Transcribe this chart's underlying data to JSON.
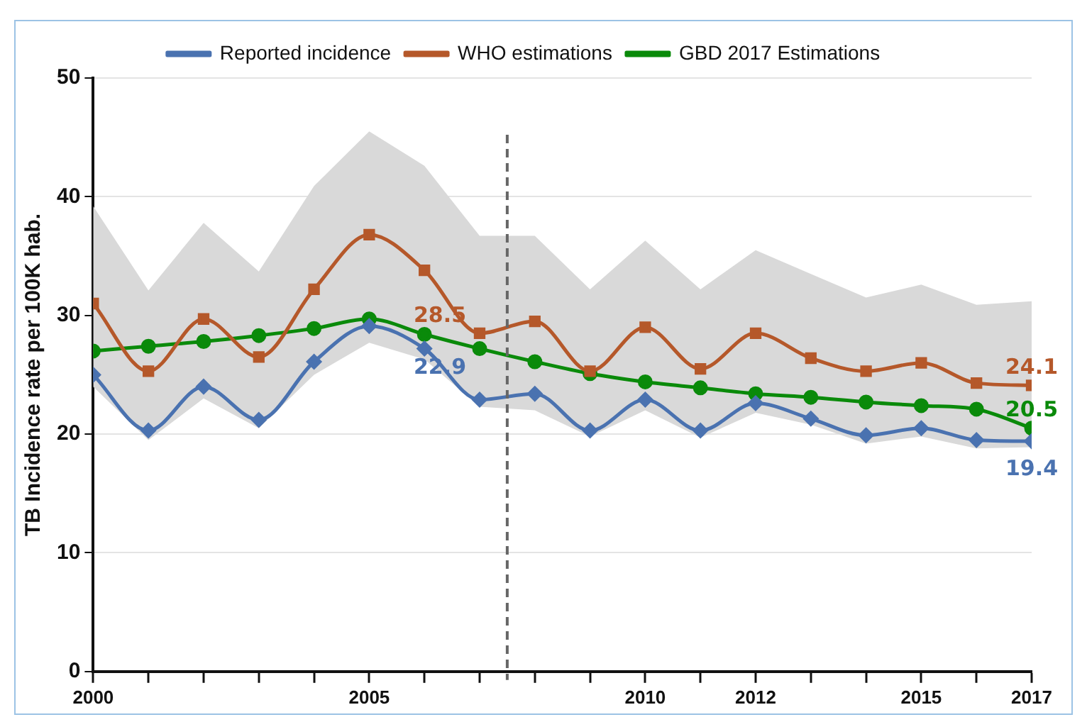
{
  "chart_data": {
    "type": "line",
    "ylabel": "TB Incidence rate per 100K hab.",
    "x": [
      2000,
      2001,
      2002,
      2003,
      2004,
      2005,
      2006,
      2007,
      2008,
      2009,
      2010,
      2011,
      2012,
      2013,
      2014,
      2015,
      2016,
      2017
    ],
    "series": [
      {
        "name": "Reported incidence",
        "color": "#4a72b0",
        "marker": "diamond",
        "values": [
          25.0,
          20.3,
          24.0,
          21.2,
          26.1,
          29.1,
          27.2,
          22.9,
          23.4,
          20.3,
          22.9,
          20.3,
          22.6,
          21.3,
          19.9,
          20.5,
          19.5,
          19.4
        ],
        "value_labels": [
          null,
          null,
          null,
          null,
          null,
          null,
          null,
          "22.9",
          null,
          null,
          null,
          null,
          null,
          null,
          null,
          null,
          null,
          "19.4"
        ]
      },
      {
        "name": "WHO estimations",
        "color": "#b5582a",
        "marker": "square",
        "values": [
          31.0,
          25.3,
          29.7,
          26.5,
          32.2,
          36.8,
          33.8,
          28.5,
          29.5,
          25.3,
          29.0,
          25.5,
          28.5,
          26.4,
          25.3,
          26.0,
          24.3,
          24.1
        ],
        "value_labels": [
          null,
          null,
          null,
          null,
          null,
          null,
          null,
          "28.5",
          null,
          null,
          null,
          null,
          null,
          null,
          null,
          null,
          null,
          "24.1"
        ],
        "lower": [
          24.0,
          19.5,
          23.0,
          20.5,
          25.0,
          27.7,
          26.3,
          22.3,
          22.0,
          19.8,
          22.0,
          19.7,
          21.8,
          20.8,
          19.2,
          19.8,
          18.8,
          18.9
        ],
        "upper": [
          39.2,
          32.1,
          37.8,
          33.7,
          40.9,
          45.5,
          42.6,
          36.7,
          36.7,
          32.2,
          36.3,
          32.2,
          35.5,
          33.5,
          31.5,
          32.6,
          30.9,
          31.2
        ]
      },
      {
        "name": "GBD 2017 Estimations",
        "color": "#0a8a0a",
        "marker": "circle",
        "values": [
          27.0,
          27.4,
          27.8,
          28.3,
          28.9,
          29.7,
          28.4,
          27.2,
          26.1,
          25.1,
          24.4,
          23.9,
          23.4,
          23.1,
          22.7,
          22.4,
          22.1,
          20.5
        ],
        "value_labels": [
          null,
          null,
          null,
          null,
          null,
          null,
          null,
          null,
          null,
          null,
          null,
          null,
          null,
          null,
          null,
          null,
          null,
          "20.5"
        ]
      }
    ],
    "xlim": [
      2000,
      2017
    ],
    "xticks": [
      2000,
      {
        "value": 2001,
        "label": null
      },
      {
        "value": 2002,
        "label": null
      },
      {
        "value": 2003,
        "label": null
      },
      {
        "value": 2004,
        "label": null
      },
      2005,
      {
        "value": 2006,
        "label": null
      },
      {
        "value": 2007,
        "label": null
      },
      {
        "value": 2008,
        "label": null
      },
      {
        "value": 2009,
        "label": null
      },
      2010,
      {
        "value": 2011,
        "label": null
      },
      2012,
      {
        "value": 2013,
        "label": null
      },
      {
        "value": 2014,
        "label": null
      },
      2015,
      {
        "value": 2016,
        "label": null
      },
      2017
    ],
    "ylim": [
      0,
      50
    ],
    "yticks": [
      0,
      10,
      20,
      30,
      40,
      50
    ],
    "ref_lines": [
      {
        "axis": "x",
        "value": 2007.5,
        "color": "#666666",
        "line_style": "dashed"
      }
    ],
    "grid": "y",
    "legend": "top"
  }
}
